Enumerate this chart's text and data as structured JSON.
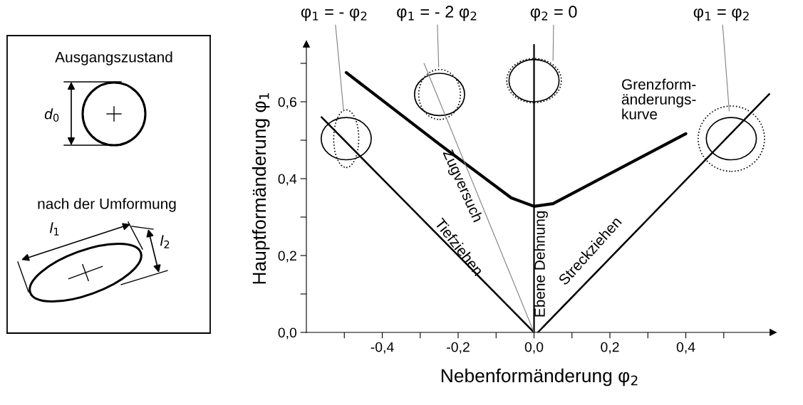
{
  "chart_data": [
    {
      "type": "other",
      "annotations": [
        "Ausgangszustand",
        "d$_{0}$",
        "nach der Umformung",
        "l$_{1}$",
        "l$_{2}$"
      ]
    },
    {
      "type": "line",
      "xlabel": "Nebenformänderung φ$_{2}$",
      "ylabel": "Hauptformänderung φ$_{1}$",
      "xlim": [
        -0.6,
        0.63
      ],
      "ylim": [
        0,
        0.75
      ],
      "xticks": [
        {
          "value": -0.5,
          "label": null
        },
        {
          "value": -0.4,
          "label": "-0,4"
        },
        {
          "value": -0.3,
          "label": null
        },
        {
          "value": -0.2,
          "label": "-0,2"
        },
        {
          "value": -0.1,
          "label": null
        },
        {
          "value": 0.0,
          "label": "0,0"
        },
        {
          "value": 0.1,
          "label": null
        },
        {
          "value": 0.2,
          "label": "0,2"
        },
        {
          "value": 0.3,
          "label": null
        },
        {
          "value": 0.4,
          "label": "0,4"
        },
        {
          "value": 0.5,
          "label": null
        }
      ],
      "yticks": [
        {
          "value": 0.0,
          "label": "0,0"
        },
        {
          "value": 0.1,
          "label": null
        },
        {
          "value": 0.2,
          "label": "0,2"
        },
        {
          "value": 0.3,
          "label": null
        },
        {
          "value": 0.4,
          "label": "0,4"
        },
        {
          "value": 0.5,
          "label": null
        },
        {
          "value": 0.6,
          "label": "0,6"
        },
        {
          "value": 0.7,
          "label": null
        }
      ],
      "marker": "none",
      "line_style": "solid",
      "series": [
        {
          "name": "Grenzform-\nänderungs-\nkurve",
          "color": "#000000",
          "x": [
            -0.495,
            -0.25,
            -0.06,
            0.0,
            0.05,
            0.4
          ],
          "values": [
            0.676,
            0.49,
            0.35,
            0.328,
            0.335,
            0.517
          ]
        },
        {
          "name": "Tiefziehen",
          "color": "#000000",
          "x": [
            -0.56,
            0.0
          ],
          "values": [
            0.56,
            0.0
          ]
        },
        {
          "name": "Zugversuch",
          "color": "#808080",
          "x": [
            -0.29,
            0.0
          ],
          "values": [
            0.7,
            0.0
          ]
        },
        {
          "name": "Streckziehen",
          "color": "#000000",
          "x": [
            0.01,
            0.62
          ],
          "values": [
            0.0,
            0.62
          ]
        }
      ],
      "ref_lines": [
        {
          "axis": "x",
          "value": 0.0,
          "label": "Ebene Dehnung",
          "color": "#000000",
          "line_style": "solid"
        }
      ],
      "annotations": [
        "φ$_{1}$ = - φ$_{2}$",
        "φ$_{1}$ = - 2 φ$_{2}$",
        "φ$_{2}$ = 0",
        "φ$_{1}$ = φ$_{2}$"
      ]
    }
  ]
}
